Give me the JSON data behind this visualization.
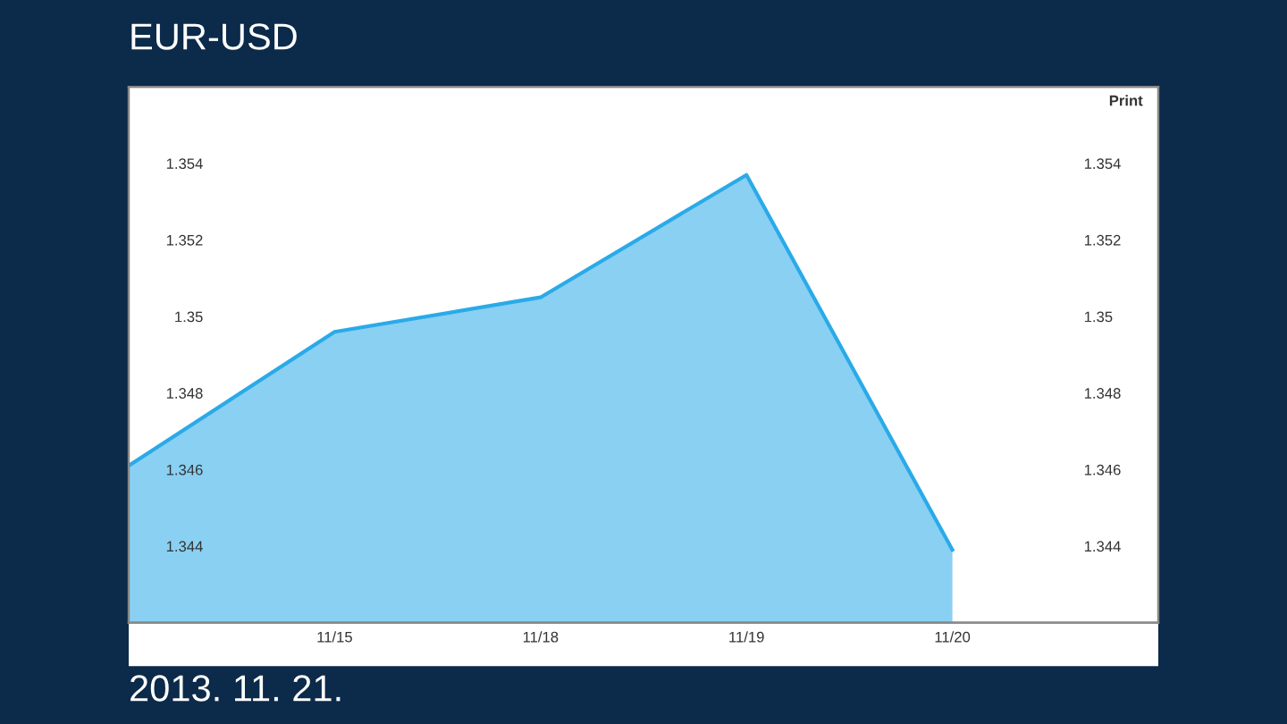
{
  "chart_data": {
    "type": "area",
    "title": "EUR-USD",
    "categories": [
      null,
      "11/15",
      "11/18",
      "11/19",
      "11/20"
    ],
    "series": [
      {
        "color": "#2aaae8",
        "values": [
          1.3461,
          1.3496,
          1.3505,
          1.3537,
          1.3439
        ]
      }
    ],
    "ylim": [
      1.342,
      1.356
    ],
    "yticks": [
      1.344,
      1.346,
      1.348,
      {
        "value": 1.35,
        "label": "1.35"
      },
      1.352,
      1.354
    ],
    "y2lim": [
      1.342,
      1.356
    ],
    "y2ticks": [
      1.344,
      1.346,
      1.348,
      {
        "value": 1.35,
        "label": "1.35"
      },
      1.352,
      1.354
    ],
    "annotations": [
      "Print",
      "2013. 11. 21."
    ]
  }
}
